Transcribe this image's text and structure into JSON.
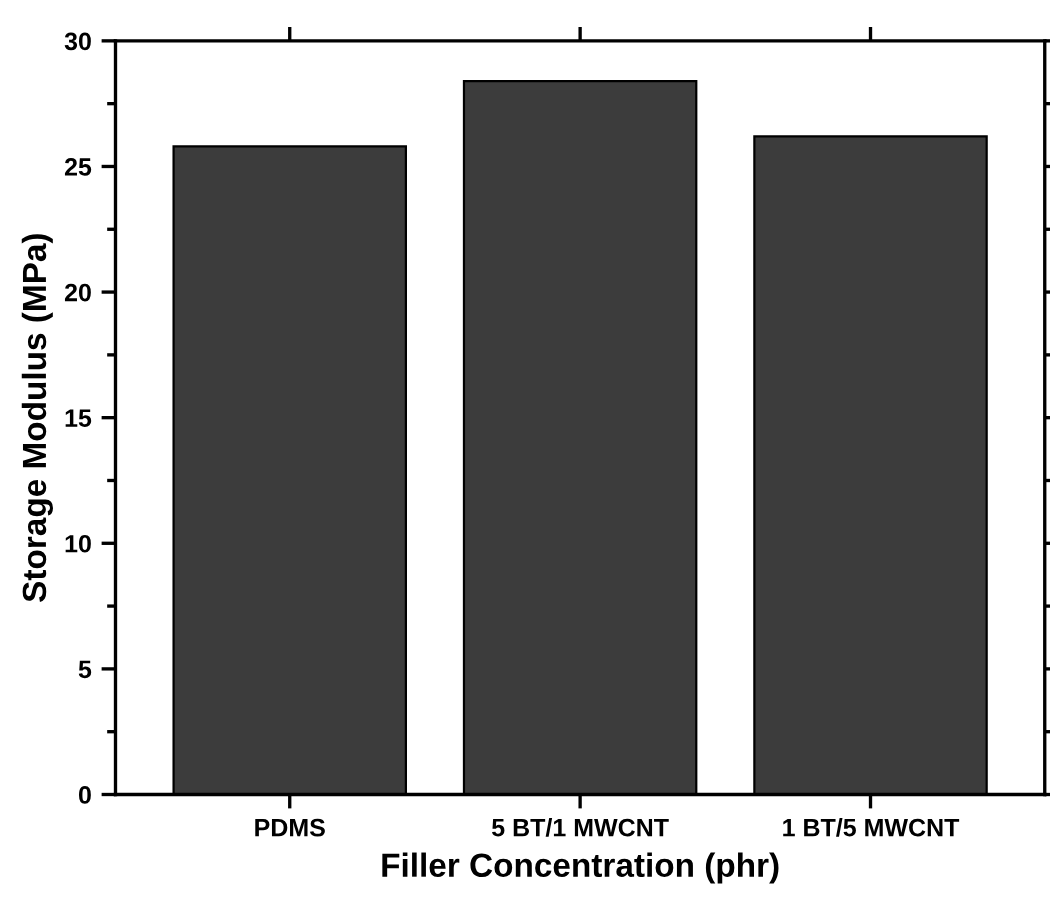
{
  "chart_data": {
    "type": "bar",
    "xlabel": "Filler Concentration (phr)",
    "ylabel": "Storage Modulus (MPa)",
    "categories": [
      "PDMS",
      "5 BT/1 MWCNT",
      "1 BT/5 MWCNT"
    ],
    "values": [
      25.8,
      28.4,
      26.2
    ],
    "color": "#3c3c3c",
    "ylim": [
      0,
      30
    ],
    "yticks": [
      0,
      5,
      10,
      15,
      20,
      25,
      30
    ],
    "grid": false,
    "legend": false
  }
}
